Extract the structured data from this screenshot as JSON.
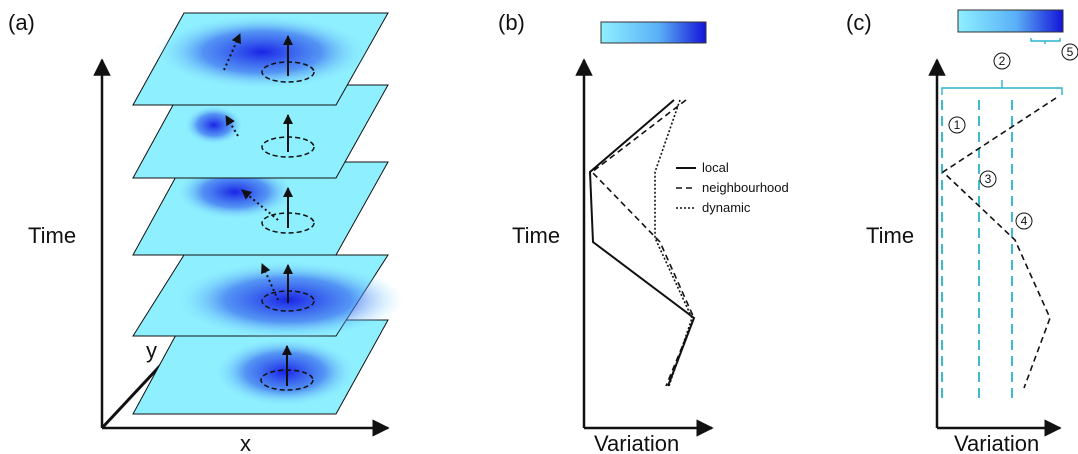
{
  "colors": {
    "plane_fill": "#8ef0ff",
    "hotspot": "#1a24e6",
    "bar_light": "#8ef0ff",
    "bar_dark": "#1414d8",
    "cyan_line": "#2ab2cc",
    "ink": "#111111"
  },
  "panel_a": {
    "label": "(a)",
    "axis_time": "Time",
    "axis_x": "x",
    "axis_y": "y"
  },
  "panel_b": {
    "label": "(b)",
    "axis_time": "Time",
    "axis_variation": "Variation",
    "legend": {
      "local": "local",
      "neighbourhood": "neighbourhood",
      "dynamic": "dynamic"
    }
  },
  "panel_c": {
    "label": "(c)",
    "axis_time": "Time",
    "axis_variation": "Variation",
    "markers": [
      "1",
      "2",
      "3",
      "4",
      "5"
    ]
  }
}
